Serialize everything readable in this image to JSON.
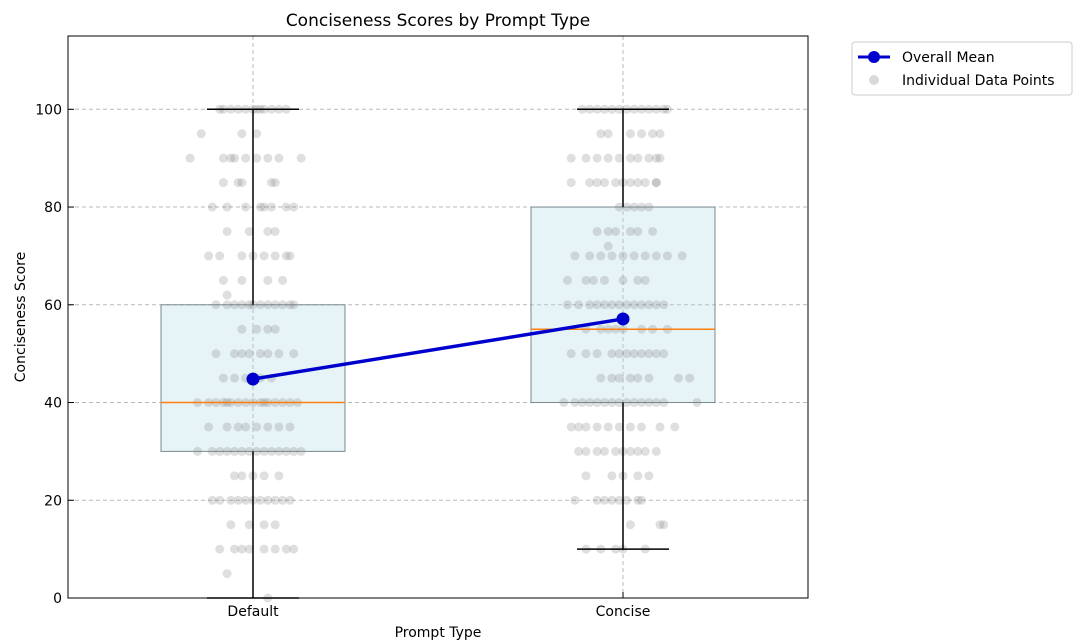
{
  "chart_data": {
    "type": "box",
    "title": "Conciseness Scores by Prompt Type",
    "xlabel": "Prompt Type",
    "ylabel": "Conciseness Score",
    "categories": [
      "Default",
      "Concise"
    ],
    "ylim": [
      0,
      115
    ],
    "yticks": [
      0,
      20,
      40,
      60,
      80,
      100
    ],
    "grid": true,
    "legend_position": "outside-top-right",
    "boxes": [
      {
        "category": "Default",
        "whisker_low": 0,
        "q1": 30,
        "median": 40,
        "q3": 60,
        "whisker_high": 100
      },
      {
        "category": "Concise",
        "whisker_low": 10,
        "q1": 40,
        "median": 55,
        "q3": 80,
        "whisker_high": 100
      }
    ],
    "series": [
      {
        "name": "Overall Mean",
        "type": "line",
        "values": [
          44.8,
          57.1
        ],
        "color": "#0000cc"
      },
      {
        "name": "Individual Data Points",
        "type": "scatter",
        "color": "#808080"
      }
    ],
    "points": {
      "Default": [
        [
          100,
          -0.08
        ],
        [
          100,
          -0.06
        ],
        [
          100,
          -0.04
        ],
        [
          100,
          -0.02
        ],
        [
          100,
          0.0
        ],
        [
          100,
          0.01
        ],
        [
          100,
          0.03
        ],
        [
          100,
          0.05
        ],
        [
          100,
          0.07
        ],
        [
          100,
          0.09
        ],
        [
          100,
          -0.09
        ],
        [
          100,
          0.02
        ],
        [
          95,
          -0.14
        ],
        [
          95,
          -0.03
        ],
        [
          95,
          0.01
        ],
        [
          90,
          -0.17
        ],
        [
          90,
          -0.08
        ],
        [
          90,
          -0.05
        ],
        [
          90,
          -0.02
        ],
        [
          90,
          0.01
        ],
        [
          90,
          0.04
        ],
        [
          90,
          0.07
        ],
        [
          90,
          0.13
        ],
        [
          90,
          -0.06
        ],
        [
          85,
          -0.08
        ],
        [
          85,
          -0.03
        ],
        [
          85,
          -0.04
        ],
        [
          85,
          0.05
        ],
        [
          85,
          0.06
        ],
        [
          80,
          -0.11
        ],
        [
          80,
          -0.07
        ],
        [
          80,
          -0.02
        ],
        [
          80,
          0.02
        ],
        [
          80,
          0.03
        ],
        [
          80,
          0.05
        ],
        [
          80,
          0.11
        ],
        [
          80,
          0.09
        ],
        [
          75,
          -0.07
        ],
        [
          75,
          -0.01
        ],
        [
          75,
          0.04
        ],
        [
          75,
          0.06
        ],
        [
          70,
          -0.12
        ],
        [
          70,
          -0.09
        ],
        [
          70,
          -0.03
        ],
        [
          70,
          0.0
        ],
        [
          70,
          0.03
        ],
        [
          70,
          0.06
        ],
        [
          70,
          0.09
        ],
        [
          70,
          0.1
        ],
        [
          65,
          -0.08
        ],
        [
          65,
          -0.03
        ],
        [
          65,
          0.04
        ],
        [
          65,
          0.08
        ],
        [
          62,
          -0.07
        ],
        [
          60,
          -0.1
        ],
        [
          60,
          -0.07
        ],
        [
          60,
          -0.05
        ],
        [
          60,
          -0.03
        ],
        [
          60,
          -0.01
        ],
        [
          60,
          0.0
        ],
        [
          60,
          0.02
        ],
        [
          60,
          0.04
        ],
        [
          60,
          0.06
        ],
        [
          60,
          0.08
        ],
        [
          60,
          0.1
        ],
        [
          60,
          0.11
        ],
        [
          55,
          -0.03
        ],
        [
          55,
          0.01
        ],
        [
          55,
          0.04
        ],
        [
          55,
          0.06
        ],
        [
          50,
          -0.1
        ],
        [
          50,
          -0.05
        ],
        [
          50,
          -0.03
        ],
        [
          50,
          -0.01
        ],
        [
          50,
          0.02
        ],
        [
          50,
          0.04
        ],
        [
          50,
          0.07
        ],
        [
          50,
          0.11
        ],
        [
          45,
          -0.08
        ],
        [
          45,
          -0.05
        ],
        [
          45,
          -0.02
        ],
        [
          45,
          0.02
        ],
        [
          45,
          0.05
        ],
        [
          40,
          -0.15
        ],
        [
          40,
          -0.12
        ],
        [
          40,
          -0.1
        ],
        [
          40,
          -0.08
        ],
        [
          40,
          -0.06
        ],
        [
          40,
          -0.04
        ],
        [
          40,
          -0.02
        ],
        [
          40,
          0.0
        ],
        [
          40,
          0.02
        ],
        [
          40,
          0.04
        ],
        [
          40,
          0.06
        ],
        [
          40,
          0.08
        ],
        [
          40,
          0.1
        ],
        [
          40,
          0.12
        ],
        [
          40,
          -0.07
        ],
        [
          40,
          0.03
        ],
        [
          35,
          -0.12
        ],
        [
          35,
          -0.07
        ],
        [
          35,
          -0.04
        ],
        [
          35,
          -0.02
        ],
        [
          35,
          0.01
        ],
        [
          35,
          0.04
        ],
        [
          35,
          0.07
        ],
        [
          35,
          0.1
        ],
        [
          30,
          -0.15
        ],
        [
          30,
          -0.11
        ],
        [
          30,
          -0.09
        ],
        [
          30,
          -0.07
        ],
        [
          30,
          -0.05
        ],
        [
          30,
          -0.03
        ],
        [
          30,
          -0.01
        ],
        [
          30,
          0.01
        ],
        [
          30,
          0.03
        ],
        [
          30,
          0.05
        ],
        [
          30,
          0.07
        ],
        [
          30,
          0.09
        ],
        [
          30,
          0.11
        ],
        [
          30,
          0.13
        ],
        [
          25,
          -0.05
        ],
        [
          25,
          -0.03
        ],
        [
          25,
          0.0
        ],
        [
          25,
          0.03
        ],
        [
          25,
          0.07
        ],
        [
          20,
          -0.11
        ],
        [
          20,
          -0.09
        ],
        [
          20,
          -0.06
        ],
        [
          20,
          -0.04
        ],
        [
          20,
          -0.02
        ],
        [
          20,
          0.0
        ],
        [
          20,
          0.02
        ],
        [
          20,
          0.04
        ],
        [
          20,
          0.06
        ],
        [
          20,
          0.08
        ],
        [
          20,
          0.1
        ],
        [
          15,
          -0.06
        ],
        [
          15,
          -0.01
        ],
        [
          15,
          0.03
        ],
        [
          15,
          0.06
        ],
        [
          10,
          -0.09
        ],
        [
          10,
          -0.05
        ],
        [
          10,
          -0.03
        ],
        [
          10,
          -0.01
        ],
        [
          10,
          0.03
        ],
        [
          10,
          0.06
        ],
        [
          10,
          0.09
        ],
        [
          10,
          0.11
        ],
        [
          5,
          -0.07
        ],
        [
          0,
          0.04
        ]
      ],
      "Concise": [
        [
          100,
          -0.11
        ],
        [
          100,
          -0.09
        ],
        [
          100,
          -0.07
        ],
        [
          100,
          -0.05
        ],
        [
          100,
          -0.03
        ],
        [
          100,
          -0.01
        ],
        [
          100,
          0.01
        ],
        [
          100,
          0.03
        ],
        [
          100,
          0.05
        ],
        [
          100,
          0.07
        ],
        [
          100,
          0.09
        ],
        [
          100,
          0.11
        ],
        [
          100,
          0.12
        ],
        [
          95,
          -0.06
        ],
        [
          95,
          -0.04
        ],
        [
          95,
          0.02
        ],
        [
          95,
          0.05
        ],
        [
          95,
          0.08
        ],
        [
          95,
          0.1
        ],
        [
          90,
          -0.14
        ],
        [
          90,
          -0.1
        ],
        [
          90,
          -0.07
        ],
        [
          90,
          -0.04
        ],
        [
          90,
          -0.01
        ],
        [
          90,
          0.02
        ],
        [
          90,
          0.04
        ],
        [
          90,
          0.07
        ],
        [
          90,
          0.09
        ],
        [
          90,
          0.1
        ],
        [
          85,
          -0.14
        ],
        [
          85,
          -0.09
        ],
        [
          85,
          -0.07
        ],
        [
          85,
          -0.05
        ],
        [
          85,
          -0.02
        ],
        [
          85,
          0.0
        ],
        [
          85,
          0.02
        ],
        [
          85,
          0.04
        ],
        [
          85,
          0.06
        ],
        [
          85,
          0.09
        ],
        [
          85,
          0.09
        ],
        [
          80,
          -0.01
        ],
        [
          80,
          0.01
        ],
        [
          80,
          0.03
        ],
        [
          80,
          0.05
        ],
        [
          80,
          0.07
        ],
        [
          75,
          -0.07
        ],
        [
          75,
          -0.04
        ],
        [
          75,
          -0.02
        ],
        [
          75,
          0.02
        ],
        [
          75,
          0.04
        ],
        [
          75,
          0.08
        ],
        [
          72,
          -0.04
        ],
        [
          70,
          -0.13
        ],
        [
          70,
          -0.09
        ],
        [
          70,
          -0.06
        ],
        [
          70,
          -0.03
        ],
        [
          70,
          0.0
        ],
        [
          70,
          0.03
        ],
        [
          70,
          0.06
        ],
        [
          70,
          0.09
        ],
        [
          70,
          0.12
        ],
        [
          70,
          0.16
        ],
        [
          65,
          -0.15
        ],
        [
          65,
          -0.1
        ],
        [
          65,
          -0.08
        ],
        [
          65,
          -0.05
        ],
        [
          65,
          0.0
        ],
        [
          65,
          0.04
        ],
        [
          65,
          0.06
        ],
        [
          60,
          -0.15
        ],
        [
          60,
          -0.12
        ],
        [
          60,
          -0.09
        ],
        [
          60,
          -0.07
        ],
        [
          60,
          -0.05
        ],
        [
          60,
          -0.03
        ],
        [
          60,
          -0.01
        ],
        [
          60,
          0.01
        ],
        [
          60,
          0.03
        ],
        [
          60,
          0.05
        ],
        [
          60,
          0.07
        ],
        [
          60,
          0.09
        ],
        [
          60,
          0.11
        ],
        [
          55,
          -0.1
        ],
        [
          55,
          -0.06
        ],
        [
          55,
          -0.04
        ],
        [
          55,
          -0.02
        ],
        [
          55,
          0.0
        ],
        [
          55,
          0.05
        ],
        [
          55,
          0.08
        ],
        [
          55,
          0.12
        ],
        [
          50,
          -0.14
        ],
        [
          50,
          -0.1
        ],
        [
          50,
          -0.07
        ],
        [
          50,
          -0.03
        ],
        [
          50,
          -0.01
        ],
        [
          50,
          0.01
        ],
        [
          50,
          0.03
        ],
        [
          50,
          0.05
        ],
        [
          50,
          0.07
        ],
        [
          50,
          0.09
        ],
        [
          50,
          0.11
        ],
        [
          45,
          -0.06
        ],
        [
          45,
          -0.03
        ],
        [
          45,
          -0.01
        ],
        [
          45,
          0.02
        ],
        [
          45,
          0.04
        ],
        [
          45,
          0.07
        ],
        [
          45,
          0.15
        ],
        [
          45,
          0.18
        ],
        [
          40,
          -0.16
        ],
        [
          40,
          -0.13
        ],
        [
          40,
          -0.11
        ],
        [
          40,
          -0.09
        ],
        [
          40,
          -0.07
        ],
        [
          40,
          -0.05
        ],
        [
          40,
          -0.03
        ],
        [
          40,
          -0.01
        ],
        [
          40,
          0.01
        ],
        [
          40,
          0.03
        ],
        [
          40,
          0.05
        ],
        [
          40,
          0.07
        ],
        [
          40,
          0.09
        ],
        [
          40,
          0.11
        ],
        [
          40,
          0.2
        ],
        [
          35,
          -0.14
        ],
        [
          35,
          -0.12
        ],
        [
          35,
          -0.1
        ],
        [
          35,
          -0.07
        ],
        [
          35,
          -0.04
        ],
        [
          35,
          -0.01
        ],
        [
          35,
          0.02
        ],
        [
          35,
          0.05
        ],
        [
          35,
          0.1
        ],
        [
          35,
          0.14
        ],
        [
          30,
          -0.12
        ],
        [
          30,
          -0.1
        ],
        [
          30,
          -0.07
        ],
        [
          30,
          -0.05
        ],
        [
          30,
          -0.02
        ],
        [
          30,
          0.0
        ],
        [
          30,
          0.02
        ],
        [
          30,
          0.04
        ],
        [
          30,
          0.06
        ],
        [
          30,
          0.09
        ],
        [
          25,
          -0.1
        ],
        [
          25,
          -0.03
        ],
        [
          25,
          0.0
        ],
        [
          25,
          0.04
        ],
        [
          25,
          0.07
        ],
        [
          20,
          -0.13
        ],
        [
          20,
          -0.07
        ],
        [
          20,
          -0.05
        ],
        [
          20,
          -0.03
        ],
        [
          20,
          -0.01
        ],
        [
          20,
          0.01
        ],
        [
          20,
          0.04
        ],
        [
          20,
          0.05
        ],
        [
          15,
          0.02
        ],
        [
          15,
          0.11
        ],
        [
          15,
          0.1
        ],
        [
          10,
          -0.1
        ],
        [
          10,
          -0.06
        ],
        [
          10,
          -0.02
        ],
        [
          10,
          0.0
        ],
        [
          10,
          0.06
        ]
      ]
    }
  }
}
